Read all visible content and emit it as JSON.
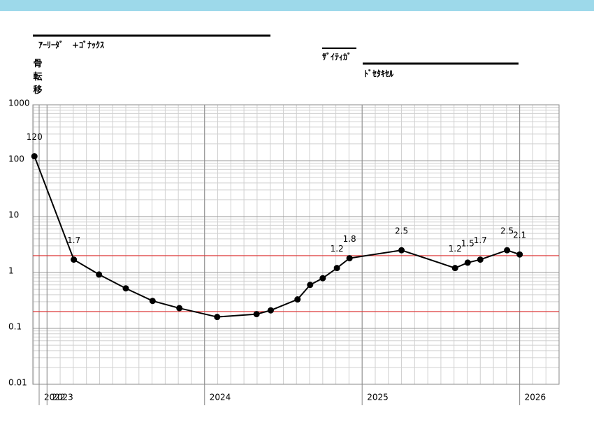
{
  "header": {
    "regimen_1": "ｱｰﾘｰﾀﾞ　+ｺﾞﾅｯｸｽ",
    "regimen_2": "ｻﾞｲﾃｨｶﾞ",
    "regimen_3": "ﾄﾞｾﾀｷｾﾙ"
  },
  "chart_data": {
    "type": "line",
    "y_label": "骨転移",
    "x": [
      2022.92,
      2023.17,
      2023.33,
      2023.5,
      2023.67,
      2023.84,
      2024.08,
      2024.33,
      2024.42,
      2024.59,
      2024.67,
      2024.75,
      2024.84,
      2024.92,
      2025.25,
      2025.59,
      2025.67,
      2025.75,
      2025.92,
      2026.0
    ],
    "series": [
      {
        "name": "骨転移",
        "color": "#000000",
        "values": [
          120,
          1.7,
          0.92,
          0.52,
          0.31,
          0.23,
          0.16,
          0.18,
          0.21,
          0.33,
          0.6,
          0.79,
          1.2,
          1.8,
          2.5,
          1.2,
          1.5,
          1.7,
          2.5,
          2.1
        ],
        "value_labels": [
          "120",
          "1.7",
          null,
          null,
          null,
          null,
          null,
          null,
          null,
          null,
          null,
          null,
          "1.2",
          "1.8",
          "2.5",
          "1.2",
          "1.5",
          "1.7",
          "2.5",
          "2.1"
        ]
      }
    ],
    "xlim": [
      2022.91,
      2026.25
    ],
    "xticks": [
      {
        "value": 2022.95,
        "label": "2022"
      },
      2023,
      2024,
      2025,
      2026
    ],
    "ylim": [
      0.01,
      1000
    ],
    "yticks": [
      0.01,
      0.1,
      1,
      10,
      100,
      1000
    ],
    "log_scale_y": true,
    "grid": true,
    "reference_lines": [
      2,
      0.2
    ],
    "reference_color": "#e03030"
  }
}
